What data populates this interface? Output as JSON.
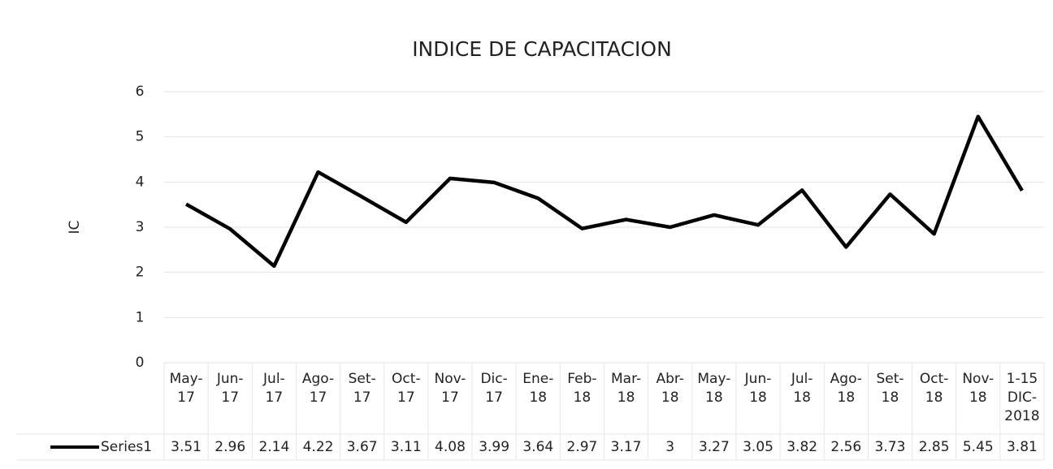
{
  "chart_data": {
    "type": "line",
    "title": "INDICE DE CAPACITACION",
    "y_label": "IC",
    "categories": [
      "May-\n17",
      "Jun-\n17",
      "Jul-\n17",
      "Ago-\n17",
      "Set-\n17",
      "Oct-\n17",
      "Nov-\n17",
      "Dic-\n17",
      "Ene-\n18",
      "Feb-\n18",
      "Mar-\n18",
      "Abr-\n18",
      "May-\n18",
      "Jun-\n18",
      "Jul-\n18",
      "Ago-\n18",
      "Set-\n18",
      "Oct-\n18",
      "Nov-\n18",
      "1-15\nDIC-\n2018"
    ],
    "series": [
      {
        "name": "Series1",
        "color": "#000000",
        "values": [
          3.51,
          2.96,
          2.14,
          4.22,
          3.67,
          3.11,
          4.08,
          3.99,
          3.64,
          2.97,
          3.17,
          3,
          3.27,
          3.05,
          3.82,
          2.56,
          3.73,
          2.85,
          5.45,
          3.81
        ]
      }
    ],
    "ylim": [
      0,
      6
    ],
    "yticks": [
      0,
      1,
      2,
      3,
      4,
      5,
      6
    ],
    "grid": true,
    "data_table": true
  }
}
